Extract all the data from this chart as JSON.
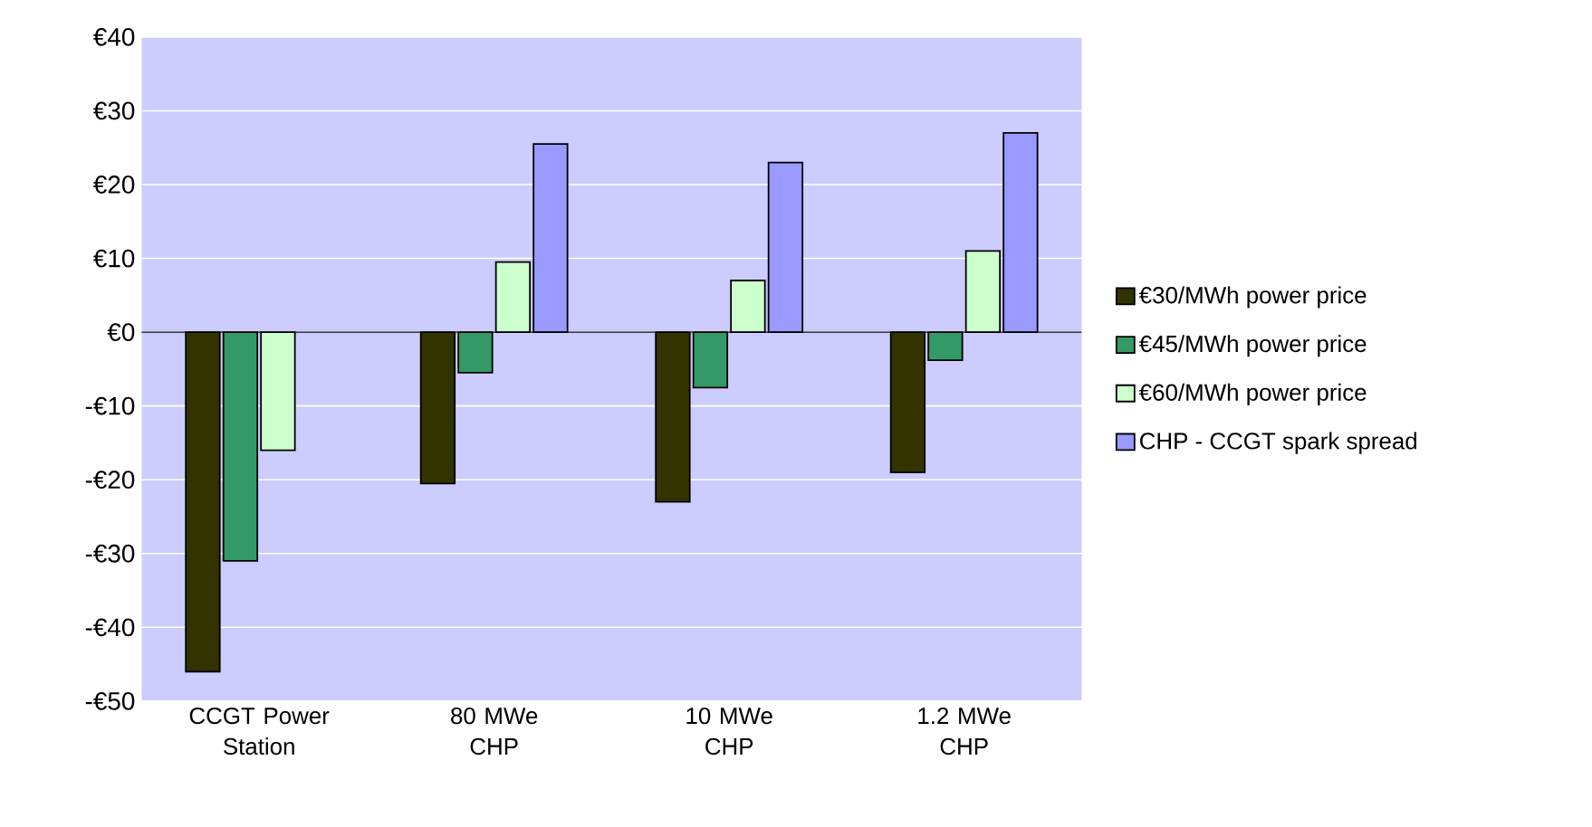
{
  "chart_data": {
    "type": "bar",
    "categories": [
      "CCGT Power Station",
      "80 MWe CHP",
      "10 MWe CHP",
      "1.2 MWe CHP"
    ],
    "series": [
      {
        "name": "€30/MWh power price",
        "color": "#333300",
        "values": [
          -46,
          -20.5,
          -23,
          -19
        ]
      },
      {
        "name": "€45/MWh power price",
        "color": "#339966",
        "values": [
          -31,
          -5.5,
          -7.5,
          -3.8
        ]
      },
      {
        "name": "€60/MWh power price",
        "color": "#ccffcc",
        "values": [
          -16,
          9.5,
          7,
          11
        ]
      },
      {
        "name": "CHP - CCGT spark spread",
        "color": "#9999ff",
        "values": [
          null,
          25.5,
          23,
          27
        ]
      }
    ],
    "ylim": [
      -50,
      40
    ],
    "yticks": [
      {
        "value": -50,
        "label": "-€50"
      },
      {
        "value": -40,
        "label": "-€40"
      },
      {
        "value": -30,
        "label": "-€30"
      },
      {
        "value": -20,
        "label": "-€20"
      },
      {
        "value": -10,
        "label": "-€10"
      },
      {
        "value": 0,
        "label": "€0"
      },
      {
        "value": 10,
        "label": "€10"
      },
      {
        "value": 20,
        "label": "€20"
      },
      {
        "value": 30,
        "label": "€30"
      },
      {
        "value": 40,
        "label": "€40"
      }
    ],
    "grid": "y",
    "legend": "right"
  }
}
